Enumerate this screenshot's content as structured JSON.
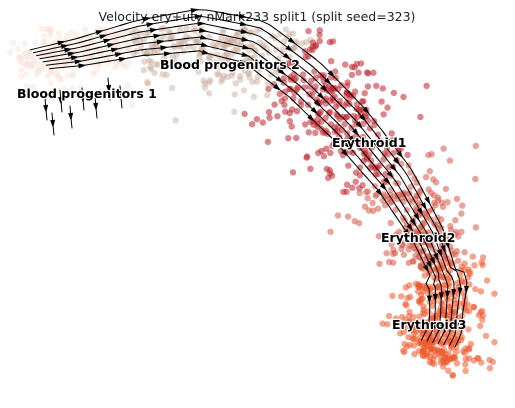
{
  "chart_data": {
    "type": "scatter",
    "subtype": "rna-velocity-stream-embedding",
    "title": "Velocity ery+utv nMark233 split1 (split seed=323)",
    "xlabel": "",
    "ylabel": "",
    "axes_visible": false,
    "grid": false,
    "legend": "none (cluster names drawn on embedding)",
    "clusters": [
      {
        "name": "Blood progenitors 1",
        "color": "#f8e0d4"
      },
      {
        "name": "Blood progenitors 2",
        "color": "#c8a896"
      },
      {
        "name": "Erythroid1",
        "color": "#c0202c"
      },
      {
        "name": "Erythroid2",
        "color": "#d65a48"
      },
      {
        "name": "Erythroid3",
        "color": "#ec5a2c"
      }
    ],
    "streamline_color": "#000000",
    "flow_direction": "Blood progenitors 1 → Blood progenitors 2 → Erythroid1 → Erythroid2 → Erythroid3"
  }
}
